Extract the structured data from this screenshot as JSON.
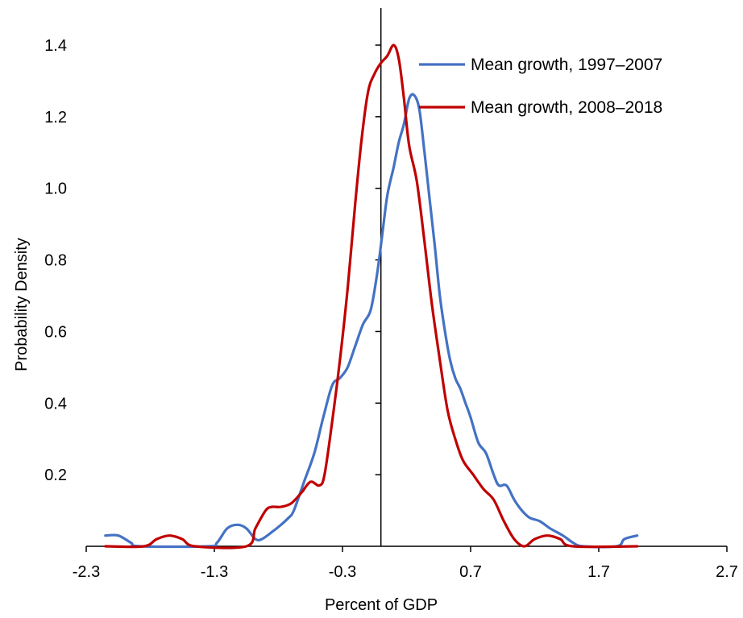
{
  "chart_data": {
    "type": "line",
    "title": "",
    "xlabel": "Percent of GDP",
    "ylabel": "Probability Density",
    "xlim": [
      -2.3,
      2.7
    ],
    "ylim": [
      0,
      1.4
    ],
    "x_ticks": [
      "-2.3",
      "-1.3",
      "-0.3",
      "0.7",
      "1.7",
      "2.7"
    ],
    "y_ticks": [
      "0.2",
      "0.4",
      "0.6",
      "0.8",
      "1.0",
      "1.2",
      "1.4"
    ],
    "legend_position": "top-right",
    "grid": false,
    "series": [
      {
        "name": "Mean growth, 1997–2007",
        "color": "#4472C4",
        "points": [
          [
            -2.15,
            0.03
          ],
          [
            -2.05,
            0.03
          ],
          [
            -1.95,
            0.01
          ],
          [
            -1.88,
            0.0
          ],
          [
            -1.35,
            0.0
          ],
          [
            -1.28,
            0.01
          ],
          [
            -1.2,
            0.05
          ],
          [
            -1.12,
            0.06
          ],
          [
            -1.05,
            0.05
          ],
          [
            -0.98,
            0.02
          ],
          [
            -0.93,
            0.02
          ],
          [
            -0.85,
            0.04
          ],
          [
            -0.78,
            0.06
          ],
          [
            -0.72,
            0.08
          ],
          [
            -0.68,
            0.1
          ],
          [
            -0.6,
            0.18
          ],
          [
            -0.52,
            0.26
          ],
          [
            -0.45,
            0.36
          ],
          [
            -0.38,
            0.45
          ],
          [
            -0.32,
            0.47
          ],
          [
            -0.26,
            0.5
          ],
          [
            -0.2,
            0.56
          ],
          [
            -0.14,
            0.62
          ],
          [
            -0.08,
            0.66
          ],
          [
            -0.03,
            0.76
          ],
          [
            0.01,
            0.87
          ],
          [
            0.05,
            0.98
          ],
          [
            0.1,
            1.06
          ],
          [
            0.14,
            1.13
          ],
          [
            0.18,
            1.18
          ],
          [
            0.22,
            1.25
          ],
          [
            0.26,
            1.26
          ],
          [
            0.3,
            1.22
          ],
          [
            0.34,
            1.1
          ],
          [
            0.38,
            0.97
          ],
          [
            0.42,
            0.84
          ],
          [
            0.46,
            0.7
          ],
          [
            0.5,
            0.6
          ],
          [
            0.54,
            0.52
          ],
          [
            0.58,
            0.47
          ],
          [
            0.62,
            0.44
          ],
          [
            0.66,
            0.4
          ],
          [
            0.7,
            0.36
          ],
          [
            0.76,
            0.29
          ],
          [
            0.82,
            0.26
          ],
          [
            0.88,
            0.2
          ],
          [
            0.92,
            0.17
          ],
          [
            0.98,
            0.17
          ],
          [
            1.04,
            0.13
          ],
          [
            1.1,
            0.1
          ],
          [
            1.16,
            0.08
          ],
          [
            1.24,
            0.07
          ],
          [
            1.32,
            0.05
          ],
          [
            1.42,
            0.03
          ],
          [
            1.5,
            0.01
          ],
          [
            1.58,
            0.0
          ],
          [
            1.84,
            0.0
          ],
          [
            1.9,
            0.02
          ],
          [
            2.0,
            0.03
          ]
        ]
      },
      {
        "name": "Mean growth, 2008–2018",
        "color": "#C00000",
        "points": [
          [
            -2.15,
            0.0
          ],
          [
            -1.85,
            0.0
          ],
          [
            -1.75,
            0.02
          ],
          [
            -1.65,
            0.03
          ],
          [
            -1.55,
            0.02
          ],
          [
            -1.45,
            0.0
          ],
          [
            -1.05,
            0.0
          ],
          [
            -0.98,
            0.05
          ],
          [
            -0.9,
            0.1
          ],
          [
            -0.85,
            0.11
          ],
          [
            -0.78,
            0.11
          ],
          [
            -0.7,
            0.12
          ],
          [
            -0.62,
            0.15
          ],
          [
            -0.55,
            0.18
          ],
          [
            -0.48,
            0.17
          ],
          [
            -0.44,
            0.2
          ],
          [
            -0.38,
            0.35
          ],
          [
            -0.32,
            0.52
          ],
          [
            -0.26,
            0.72
          ],
          [
            -0.2,
            0.96
          ],
          [
            -0.15,
            1.14
          ],
          [
            -0.1,
            1.27
          ],
          [
            -0.05,
            1.32
          ],
          [
            0.0,
            1.35
          ],
          [
            0.05,
            1.37
          ],
          [
            0.1,
            1.4
          ],
          [
            0.14,
            1.36
          ],
          [
            0.18,
            1.25
          ],
          [
            0.22,
            1.12
          ],
          [
            0.28,
            1.02
          ],
          [
            0.34,
            0.85
          ],
          [
            0.4,
            0.67
          ],
          [
            0.46,
            0.52
          ],
          [
            0.52,
            0.38
          ],
          [
            0.58,
            0.3
          ],
          [
            0.64,
            0.24
          ],
          [
            0.72,
            0.2
          ],
          [
            0.8,
            0.16
          ],
          [
            0.88,
            0.13
          ],
          [
            0.96,
            0.07
          ],
          [
            1.04,
            0.02
          ],
          [
            1.12,
            0.0
          ],
          [
            1.2,
            0.02
          ],
          [
            1.3,
            0.03
          ],
          [
            1.4,
            0.02
          ],
          [
            1.5,
            0.0
          ],
          [
            2.0,
            0.0
          ]
        ]
      }
    ]
  }
}
